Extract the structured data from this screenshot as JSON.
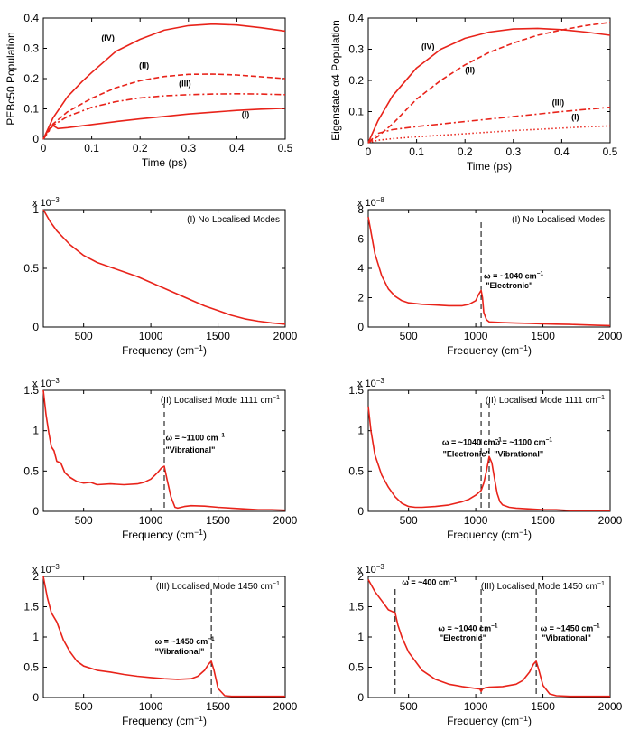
{
  "figure": {
    "color": "#e8231a"
  },
  "chart_data": [
    {
      "type": "line",
      "title": "",
      "xlabel": "Time (ps)",
      "ylabel": "PEBc50 Population",
      "xlim": [
        0,
        0.5
      ],
      "ylim": [
        0,
        0.4
      ],
      "xticks": [
        0,
        0.1,
        0.2,
        0.3,
        0.4,
        0.5
      ],
      "yticks": [
        0,
        0.1,
        0.2,
        0.3,
        0.4
      ],
      "xticklabels": [
        "0",
        "0.1",
        "0.2",
        "0.3",
        "0.4",
        "0.5"
      ],
      "yticklabels": [
        "0",
        "0.1",
        "0.2",
        "0.3",
        "0.4"
      ],
      "exponent": "",
      "series": [
        {
          "name": "(IV)",
          "style": "solid",
          "x": [
            0,
            0.02,
            0.05,
            0.08,
            0.1,
            0.15,
            0.2,
            0.25,
            0.3,
            0.35,
            0.4,
            0.45,
            0.5
          ],
          "y": [
            0,
            0.07,
            0.14,
            0.19,
            0.22,
            0.29,
            0.33,
            0.36,
            0.375,
            0.38,
            0.377,
            0.368,
            0.357
          ]
        },
        {
          "name": "(II)",
          "style": "dashed",
          "x": [
            0,
            0.02,
            0.05,
            0.1,
            0.15,
            0.2,
            0.25,
            0.3,
            0.35,
            0.4,
            0.45,
            0.5
          ],
          "y": [
            0,
            0.05,
            0.09,
            0.135,
            0.17,
            0.193,
            0.207,
            0.214,
            0.215,
            0.212,
            0.206,
            0.2
          ]
        },
        {
          "name": "(III)",
          "style": "dashdot",
          "x": [
            0,
            0.02,
            0.05,
            0.1,
            0.15,
            0.2,
            0.25,
            0.3,
            0.35,
            0.4,
            0.45,
            0.5
          ],
          "y": [
            0,
            0.045,
            0.075,
            0.105,
            0.124,
            0.136,
            0.143,
            0.147,
            0.149,
            0.15,
            0.149,
            0.147
          ]
        },
        {
          "name": "(I)",
          "style": "solid",
          "x": [
            0,
            0.01,
            0.02,
            0.03,
            0.05,
            0.1,
            0.15,
            0.2,
            0.25,
            0.3,
            0.35,
            0.4,
            0.45,
            0.5
          ],
          "y": [
            0,
            0.03,
            0.045,
            0.035,
            0.038,
            0.048,
            0.058,
            0.067,
            0.075,
            0.083,
            0.089,
            0.095,
            0.099,
            0.102
          ]
        }
      ],
      "annotations": [
        {
          "text": "(IV)",
          "x": 0.12,
          "y": 0.325
        },
        {
          "text": "(II)",
          "x": 0.198,
          "y": 0.235
        },
        {
          "text": "(III)",
          "x": 0.28,
          "y": 0.175
        },
        {
          "text": "(I)",
          "x": 0.41,
          "y": 0.073
        }
      ],
      "vlines": []
    },
    {
      "type": "line",
      "title": "",
      "xlabel": "Time (ps)",
      "ylabel": "Eigenstate α4 Population",
      "xlim": [
        0,
        0.5
      ],
      "ylim": [
        0,
        0.4
      ],
      "xticks": [
        0,
        0.1,
        0.2,
        0.3,
        0.4,
        0.5
      ],
      "yticks": [
        0,
        0.1,
        0.2,
        0.3,
        0.4
      ],
      "xticklabels": [
        "0",
        "0.1",
        "0.2",
        "0.3",
        "0.4",
        "0.5"
      ],
      "yticklabels": [
        "0",
        "0.1",
        "0.2",
        "0.3",
        "0.4"
      ],
      "exponent": "",
      "series": [
        {
          "name": "(IV)",
          "style": "solid",
          "x": [
            0,
            0.02,
            0.05,
            0.1,
            0.15,
            0.2,
            0.25,
            0.3,
            0.35,
            0.4,
            0.45,
            0.5
          ],
          "y": [
            0,
            0.07,
            0.15,
            0.24,
            0.3,
            0.335,
            0.355,
            0.365,
            0.367,
            0.363,
            0.355,
            0.345
          ]
        },
        {
          "name": "(II)",
          "style": "dashed",
          "x": [
            0,
            0.02,
            0.05,
            0.1,
            0.15,
            0.2,
            0.25,
            0.3,
            0.35,
            0.4,
            0.45,
            0.5
          ],
          "y": [
            0,
            0.02,
            0.06,
            0.14,
            0.2,
            0.25,
            0.29,
            0.32,
            0.345,
            0.362,
            0.376,
            0.386
          ]
        },
        {
          "name": "(III)",
          "style": "dashdot",
          "x": [
            0,
            0.02,
            0.05,
            0.1,
            0.15,
            0.2,
            0.25,
            0.3,
            0.35,
            0.4,
            0.45,
            0.5
          ],
          "y": [
            0,
            0.03,
            0.042,
            0.052,
            0.06,
            0.068,
            0.076,
            0.084,
            0.092,
            0.1,
            0.107,
            0.114
          ]
        },
        {
          "name": "(I)",
          "style": "dotted",
          "x": [
            0,
            0.02,
            0.05,
            0.1,
            0.15,
            0.2,
            0.25,
            0.3,
            0.35,
            0.4,
            0.45,
            0.5
          ],
          "y": [
            0,
            0.008,
            0.013,
            0.019,
            0.024,
            0.029,
            0.034,
            0.039,
            0.043,
            0.047,
            0.051,
            0.054
          ]
        }
      ],
      "annotations": [
        {
          "text": "(IV)",
          "x": 0.11,
          "y": 0.3
        },
        {
          "text": "(II)",
          "x": 0.2,
          "y": 0.225
        },
        {
          "text": "(III)",
          "x": 0.38,
          "y": 0.12
        },
        {
          "text": "(I)",
          "x": 0.42,
          "y": 0.074
        }
      ],
      "vlines": []
    },
    {
      "type": "line",
      "title": "(I) No Localised Modes",
      "xlabel": "Frequency (cm−1)",
      "ylabel": "",
      "xlim": [
        200,
        2000
      ],
      "ylim": [
        0,
        1
      ],
      "xticks": [
        500,
        1000,
        1500,
        2000
      ],
      "yticks": [
        0,
        0.5,
        1
      ],
      "xticklabels": [
        "500",
        "1000",
        "1500",
        "2000"
      ],
      "yticklabels": [
        "0",
        "0.5",
        "1"
      ],
      "exponent": "x 10−3",
      "series": [
        {
          "name": "(I)",
          "style": "solid",
          "x": [
            200,
            250,
            300,
            400,
            500,
            600,
            700,
            800,
            900,
            1000,
            1100,
            1200,
            1300,
            1400,
            1500,
            1600,
            1700,
            1800,
            1900,
            2000
          ],
          "y": [
            1.0,
            0.9,
            0.82,
            0.7,
            0.61,
            0.55,
            0.51,
            0.47,
            0.43,
            0.38,
            0.33,
            0.28,
            0.23,
            0.18,
            0.14,
            0.1,
            0.07,
            0.05,
            0.035,
            0.025
          ]
        }
      ],
      "annotations": [],
      "vlines": []
    },
    {
      "type": "line",
      "title": "(I) No Localised Modes",
      "xlabel": "Frequency (cm−1)",
      "ylabel": "",
      "xlim": [
        200,
        2000
      ],
      "ylim": [
        0,
        8
      ],
      "xticks": [
        500,
        1000,
        1500,
        2000
      ],
      "yticks": [
        0,
        2,
        4,
        6,
        8
      ],
      "xticklabels": [
        "500",
        "1000",
        "1500",
        "2000"
      ],
      "yticklabels": [
        "0",
        "2",
        "4",
        "6",
        "8"
      ],
      "exponent": "x 10−8",
      "series": [
        {
          "name": "(I)",
          "style": "solid",
          "x": [
            200,
            250,
            300,
            350,
            400,
            450,
            500,
            600,
            700,
            800,
            900,
            950,
            1000,
            1020,
            1040,
            1050,
            1060,
            1080,
            1100,
            1200,
            1300,
            1400,
            1500,
            1600,
            1700,
            1800,
            1900,
            2000
          ],
          "y": [
            7.5,
            5.0,
            3.5,
            2.6,
            2.1,
            1.8,
            1.65,
            1.55,
            1.5,
            1.45,
            1.45,
            1.55,
            1.8,
            2.2,
            2.5,
            2.0,
            1.0,
            0.5,
            0.35,
            0.3,
            0.27,
            0.25,
            0.22,
            0.2,
            0.18,
            0.15,
            0.12,
            0.1
          ]
        }
      ],
      "annotations": [
        {
          "text": "ω = ~1040 cm−1",
          "x": 1060,
          "y": 3.3
        },
        {
          "text": "\"Electronic\"",
          "x": 1075,
          "y": 2.65
        }
      ],
      "vlines": [
        1040
      ]
    },
    {
      "type": "line",
      "title": "(II) Localised Mode 1111 cm−1",
      "xlabel": "Frequency (cm−1)",
      "ylabel": "",
      "xlim": [
        200,
        2000
      ],
      "ylim": [
        0,
        1.5
      ],
      "xticks": [
        500,
        1000,
        1500,
        2000
      ],
      "yticks": [
        0,
        0.5,
        1,
        1.5
      ],
      "xticklabels": [
        "500",
        "1000",
        "1500",
        "2000"
      ],
      "yticklabels": [
        "0",
        "0.5",
        "1",
        "1.5"
      ],
      "exponent": "x 10−3",
      "series": [
        {
          "name": "(II)",
          "style": "solid",
          "x": [
            200,
            220,
            240,
            260,
            280,
            300,
            330,
            360,
            400,
            450,
            500,
            550,
            600,
            700,
            800,
            900,
            950,
            1000,
            1050,
            1080,
            1100,
            1120,
            1150,
            1180,
            1200,
            1250,
            1300,
            1400,
            1500,
            1600,
            1700,
            1800,
            1900,
            2000
          ],
          "y": [
            1.5,
            1.2,
            0.98,
            0.8,
            0.75,
            0.62,
            0.6,
            0.48,
            0.42,
            0.37,
            0.35,
            0.36,
            0.33,
            0.34,
            0.33,
            0.34,
            0.36,
            0.4,
            0.48,
            0.54,
            0.56,
            0.4,
            0.18,
            0.05,
            0.04,
            0.06,
            0.07,
            0.065,
            0.05,
            0.04,
            0.03,
            0.02,
            0.02,
            0.015
          ]
        }
      ],
      "annotations": [
        {
          "text": "ω = ~1100 cm−1",
          "x": 1110,
          "y": 0.88
        },
        {
          "text": "\"Vibrational\"",
          "x": 1110,
          "y": 0.73
        }
      ],
      "vlines": [
        1100
      ]
    },
    {
      "type": "line",
      "title": "(II) Localised Mode 1111 cm−1",
      "xlabel": "Frequency (cm−1)",
      "ylabel": "",
      "xlim": [
        200,
        2000
      ],
      "ylim": [
        0,
        1.5
      ],
      "xticks": [
        500,
        1000,
        1500,
        2000
      ],
      "yticks": [
        0,
        0.5,
        1,
        1.5
      ],
      "xticklabels": [
        "500",
        "1000",
        "1500",
        "2000"
      ],
      "yticklabels": [
        "0",
        "0.5",
        "1",
        "1.5"
      ],
      "exponent": "x 10−3",
      "series": [
        {
          "name": "(II)",
          "style": "solid",
          "x": [
            200,
            220,
            250,
            280,
            300,
            350,
            400,
            450,
            500,
            550,
            600,
            700,
            800,
            900,
            950,
            1000,
            1040,
            1060,
            1080,
            1100,
            1120,
            1140,
            1160,
            1180,
            1200,
            1250,
            1300,
            1400,
            1500,
            1600,
            1700,
            1800,
            1900,
            2000
          ],
          "y": [
            1.3,
            1.0,
            0.7,
            0.55,
            0.45,
            0.3,
            0.18,
            0.1,
            0.06,
            0.05,
            0.05,
            0.06,
            0.08,
            0.12,
            0.15,
            0.2,
            0.26,
            0.35,
            0.5,
            0.68,
            0.6,
            0.4,
            0.22,
            0.12,
            0.08,
            0.05,
            0.04,
            0.03,
            0.02,
            0.02,
            0.01,
            0.01,
            0.01,
            0.01
          ]
        }
      ],
      "annotations": [
        {
          "text": "ω = ~1040 cm−1",
          "x": 750,
          "y": 0.82
        },
        {
          "text": "\"Electronic\"",
          "x": 755,
          "y": 0.68
        },
        {
          "text": "ω = ~1100 cm−1",
          "x": 1130,
          "y": 0.82
        },
        {
          "text": "\"Vibrational\"",
          "x": 1135,
          "y": 0.68
        }
      ],
      "vlines": [
        1040,
        1100
      ]
    },
    {
      "type": "line",
      "title": "(III) Localised Mode 1450 cm−1",
      "xlabel": "Frequency (cm−1)",
      "ylabel": "",
      "xlim": [
        200,
        2000
      ],
      "ylim": [
        0,
        2
      ],
      "xticks": [
        500,
        1000,
        1500,
        2000
      ],
      "yticks": [
        0,
        0.5,
        1,
        1.5,
        2
      ],
      "xticklabels": [
        "500",
        "1000",
        "1500",
        "2000"
      ],
      "yticklabels": [
        "0",
        "0.5",
        "1",
        "1.5",
        "2"
      ],
      "exponent": "x 10−3",
      "series": [
        {
          "name": "(III)",
          "style": "solid",
          "x": [
            200,
            230,
            260,
            300,
            350,
            400,
            450,
            500,
            600,
            700,
            800,
            900,
            1000,
            1100,
            1200,
            1300,
            1350,
            1400,
            1430,
            1450,
            1470,
            1500,
            1550,
            1600,
            1700,
            1800,
            1900,
            2000
          ],
          "y": [
            2.0,
            1.65,
            1.4,
            1.25,
            0.95,
            0.75,
            0.6,
            0.52,
            0.45,
            0.42,
            0.38,
            0.35,
            0.33,
            0.31,
            0.3,
            0.31,
            0.35,
            0.45,
            0.55,
            0.6,
            0.45,
            0.15,
            0.03,
            0.02,
            0.02,
            0.02,
            0.02,
            0.02
          ]
        }
      ],
      "annotations": [
        {
          "text": "ω = ~1450 cm−1",
          "x": 1030,
          "y": 0.88
        },
        {
          "text": "\"Vibrational\"",
          "x": 1030,
          "y": 0.72
        }
      ],
      "vlines": [
        1450
      ]
    },
    {
      "type": "line",
      "title": "(III) Localised Mode 1450 cm−1",
      "xlabel": "Frequency (cm−1)",
      "ylabel": "",
      "xlim": [
        200,
        2000
      ],
      "ylim": [
        0,
        2
      ],
      "xticks": [
        500,
        1000,
        1500,
        2000
      ],
      "yticks": [
        0,
        0.5,
        1,
        1.5,
        2
      ],
      "xticklabels": [
        "500",
        "1000",
        "1500",
        "2000"
      ],
      "yticklabels": [
        "0",
        "0.5",
        "1",
        "1.5",
        "2"
      ],
      "exponent": "x 10−3",
      "series": [
        {
          "name": "(III)",
          "style": "solid",
          "x": [
            200,
            250,
            300,
            350,
            380,
            400,
            420,
            450,
            500,
            600,
            700,
            800,
            900,
            1000,
            1030,
            1040,
            1050,
            1070,
            1100,
            1200,
            1300,
            1350,
            1400,
            1430,
            1450,
            1470,
            1500,
            1550,
            1600,
            1700,
            1800,
            1900,
            2000
          ],
          "y": [
            1.95,
            1.75,
            1.6,
            1.45,
            1.42,
            1.4,
            1.2,
            1.0,
            0.75,
            0.45,
            0.3,
            0.22,
            0.18,
            0.15,
            0.14,
            0.1,
            0.14,
            0.16,
            0.17,
            0.18,
            0.22,
            0.28,
            0.42,
            0.55,
            0.6,
            0.45,
            0.2,
            0.06,
            0.03,
            0.02,
            0.02,
            0.02,
            0.02
          ]
        }
      ],
      "annotations": [
        {
          "text": "ω = ~400 cm−1",
          "x": 450,
          "y": 1.86
        },
        {
          "text": "ω = ~1040 cm−1",
          "x": 720,
          "y": 1.1
        },
        {
          "text": "\"Electronic\"",
          "x": 730,
          "y": 0.94
        },
        {
          "text": "ω = ~1450 cm−1",
          "x": 1480,
          "y": 1.1
        },
        {
          "text": "\"Vibrational\"",
          "x": 1490,
          "y": 0.94
        }
      ],
      "vlines": [
        400,
        1040,
        1450
      ]
    }
  ]
}
